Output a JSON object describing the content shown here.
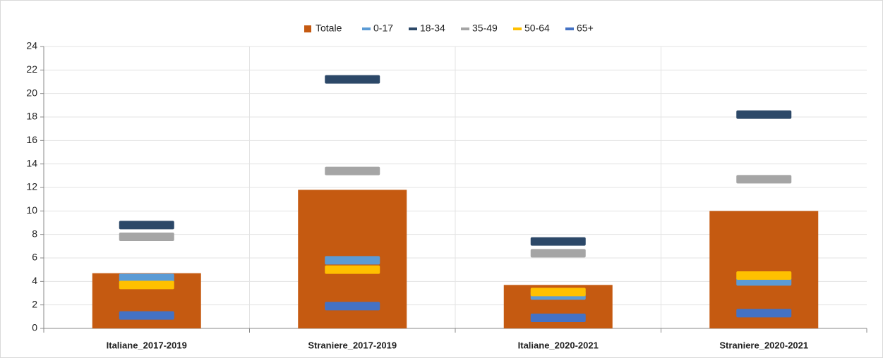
{
  "chart_data": {
    "type": "combo",
    "categories": [
      "Italiane_2017-2019",
      "Straniere_2017-2019",
      "Italiane_2020-2021",
      "Straniere_2020-2021"
    ],
    "series": [
      {
        "name": "Totale",
        "type": "bar",
        "color": "#c55a11",
        "values": [
          4.7,
          11.8,
          3.7,
          10.0
        ]
      },
      {
        "name": "0-17",
        "type": "marker",
        "color": "#5b9bd5",
        "values": [
          4.3,
          5.8,
          2.8,
          4.0
        ]
      },
      {
        "name": "18-34",
        "type": "marker",
        "color": "#2c4868",
        "values": [
          8.8,
          21.2,
          7.4,
          18.2
        ]
      },
      {
        "name": "35-49",
        "type": "marker",
        "color": "#a5a5a5",
        "values": [
          7.8,
          13.4,
          6.4,
          12.7
        ]
      },
      {
        "name": "50-64",
        "type": "marker",
        "color": "#ffc000",
        "values": [
          3.7,
          5.0,
          3.1,
          4.5
        ]
      },
      {
        "name": "65+",
        "type": "marker",
        "color": "#4472c4",
        "values": [
          1.1,
          1.9,
          0.9,
          1.3
        ]
      }
    ],
    "ylim": [
      0,
      24
    ],
    "yticks": [
      0,
      2,
      4,
      6,
      8,
      10,
      12,
      14,
      16,
      18,
      20,
      22,
      24
    ],
    "grid": true,
    "legend": "top"
  }
}
